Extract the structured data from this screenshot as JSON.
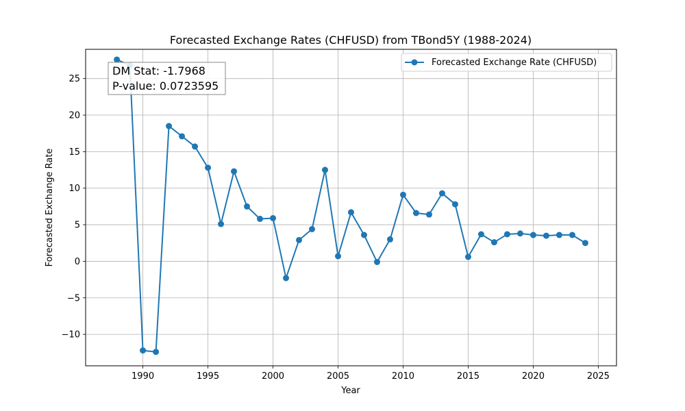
{
  "chart_data": {
    "type": "line",
    "title": "Forecasted Exchange Rates (CHFUSD) from TBond5Y (1988-2024)",
    "xlabel": "Year",
    "ylabel": "Forecasted Exchange Rate",
    "xlim": [
      1985.6,
      2026.4
    ],
    "ylim": [
      -14.3,
      29.0
    ],
    "xticks": [
      1990,
      1995,
      2000,
      2005,
      2010,
      2015,
      2020,
      2025
    ],
    "yticks": [
      -10,
      -5,
      0,
      5,
      10,
      15,
      20,
      25
    ],
    "grid": true,
    "legend_position": "upper right",
    "series": [
      {
        "name": "Forecasted Exchange Rate (CHFUSD)",
        "color": "#1f77b4",
        "marker": "circle",
        "x": [
          1988,
          1989,
          1990,
          1991,
          1992,
          1993,
          1994,
          1995,
          1996,
          1997,
          1998,
          1999,
          2000,
          2001,
          2002,
          2003,
          2004,
          2005,
          2006,
          2007,
          2008,
          2009,
          2010,
          2011,
          2012,
          2013,
          2014,
          2015,
          2016,
          2017,
          2018,
          2019,
          2020,
          2021,
          2022,
          2023,
          2024
        ],
        "y": [
          27.6,
          26.8,
          -12.2,
          -12.4,
          18.5,
          17.1,
          15.7,
          12.8,
          5.1,
          12.3,
          7.5,
          5.8,
          5.9,
          -2.3,
          2.9,
          4.4,
          12.5,
          0.7,
          6.7,
          3.6,
          -0.1,
          3.0,
          9.1,
          6.6,
          6.4,
          9.3,
          7.8,
          0.6,
          3.7,
          2.6,
          3.7,
          3.8,
          3.6,
          3.5,
          3.6,
          3.6,
          2.5
        ]
      }
    ],
    "annotation": {
      "line1": "DM Stat: -1.7968",
      "line2": "P-value: 0.0723595"
    }
  }
}
